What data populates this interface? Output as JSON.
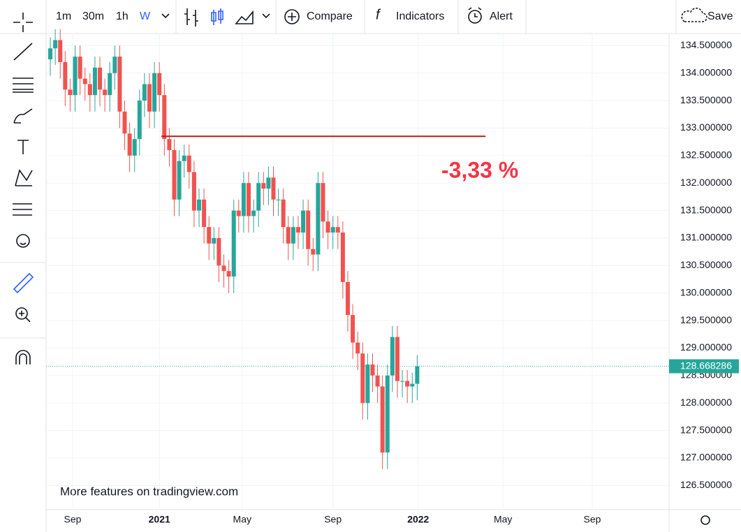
{
  "ui": {
    "intervals": [
      "1m",
      "30m",
      "1h",
      "W"
    ],
    "compare": "Compare",
    "indicators": "Indicators",
    "alert": "Alert",
    "save": "Save",
    "watermark": "More features on tradingview.com"
  },
  "chart_data": {
    "type": "candlestick",
    "up_color": "#26a69a",
    "down_color": "#ef5350",
    "grid": true,
    "open": [
      134.25,
      134.45,
      134.6,
      134.2,
      133.7,
      133.6,
      134.3,
      133.9,
      133.8,
      133.6,
      134.1,
      133.7,
      133.6,
      134.0,
      134.3,
      133.3,
      132.9,
      132.5,
      132.8,
      133.5,
      133.8,
      133.3,
      134.0,
      133.6,
      132.8,
      132.6,
      131.7,
      132.4,
      132.5,
      132.2,
      131.5,
      131.7,
      131.2,
      130.9,
      131.0,
      130.5,
      130.4,
      130.3,
      131.5,
      131.4,
      132.0,
      131.4,
      131.5,
      132.0,
      131.9,
      132.1,
      131.7,
      131.7,
      131.2,
      130.9,
      131.2,
      131.1,
      131.5,
      130.8,
      130.7,
      132.0,
      131.3,
      131.1,
      131.2,
      131.1,
      130.2,
      129.6,
      129.1,
      128.9,
      128.0,
      128.7,
      128.5,
      128.3,
      127.1,
      128.5,
      129.2,
      128.4,
      128.4,
      128.3,
      128.35
    ],
    "high": [
      134.65,
      134.8,
      134.8,
      134.4,
      133.9,
      134.5,
      134.5,
      134.1,
      134.0,
      134.3,
      134.3,
      133.9,
      134.2,
      134.5,
      134.5,
      133.5,
      133.1,
      133.0,
      133.7,
      134.0,
      134.0,
      134.2,
      134.2,
      133.8,
      133.0,
      132.8,
      132.6,
      132.7,
      132.7,
      132.4,
      131.9,
      131.9,
      131.4,
      131.2,
      131.2,
      130.7,
      130.6,
      131.7,
      131.7,
      132.2,
      132.2,
      131.7,
      132.2,
      132.2,
      132.3,
      132.3,
      131.9,
      131.9,
      131.4,
      131.4,
      131.4,
      131.7,
      131.7,
      131.0,
      132.2,
      132.2,
      131.5,
      131.4,
      131.4,
      131.3,
      130.4,
      129.8,
      129.3,
      129.1,
      128.9,
      128.9,
      128.7,
      128.5,
      128.7,
      129.4,
      129.4,
      128.6,
      128.6,
      128.55,
      128.87
    ],
    "low": [
      133.95,
      134.15,
      133.9,
      133.4,
      133.3,
      133.3,
      133.6,
      133.5,
      133.3,
      133.3,
      133.4,
      133.3,
      133.3,
      133.7,
      133.0,
      132.6,
      132.2,
      132.2,
      132.5,
      133.2,
      133.0,
      133.0,
      133.3,
      132.5,
      132.3,
      131.4,
      131.4,
      132.1,
      131.9,
      131.2,
      131.2,
      130.9,
      130.6,
      130.6,
      130.2,
      130.1,
      130.0,
      130.0,
      131.1,
      131.1,
      131.1,
      131.1,
      131.2,
      131.6,
      131.6,
      131.4,
      131.4,
      130.9,
      130.6,
      130.6,
      130.8,
      130.8,
      130.5,
      130.4,
      130.4,
      131.0,
      130.8,
      130.8,
      130.8,
      129.9,
      129.3,
      128.8,
      128.6,
      127.7,
      127.7,
      128.2,
      128.0,
      126.8,
      126.8,
      128.2,
      128.1,
      128.1,
      128.0,
      128.0,
      128.05
    ],
    "close": [
      134.45,
      134.6,
      134.2,
      133.7,
      133.6,
      134.3,
      133.9,
      133.8,
      133.6,
      134.1,
      133.7,
      133.6,
      134.0,
      134.3,
      133.3,
      132.9,
      132.5,
      132.8,
      133.5,
      133.8,
      133.3,
      134.0,
      133.6,
      132.8,
      132.6,
      131.7,
      132.4,
      132.5,
      132.2,
      131.5,
      131.7,
      131.2,
      130.9,
      131.0,
      130.5,
      130.4,
      130.3,
      131.5,
      131.4,
      132.0,
      131.4,
      131.5,
      132.0,
      131.9,
      132.1,
      131.7,
      131.7,
      131.2,
      130.9,
      131.2,
      131.1,
      131.5,
      130.8,
      130.7,
      132.0,
      131.3,
      131.1,
      131.2,
      131.1,
      130.2,
      129.6,
      129.1,
      128.9,
      128.0,
      128.7,
      128.5,
      128.3,
      127.1,
      128.5,
      129.2,
      128.4,
      128.4,
      128.3,
      128.35,
      128.668286
    ],
    "xlim": [
      -0.85,
      124.8
    ],
    "xticks": [
      {
        "value": 4.5,
        "label": "Sep"
      },
      {
        "value": 22.0,
        "label": "2021"
      },
      {
        "value": 38.7,
        "label": "May"
      },
      {
        "value": 57.0,
        "label": "Sep"
      },
      {
        "value": 74.2,
        "label": "2022"
      },
      {
        "value": 91.3,
        "label": "May"
      },
      {
        "value": 109.3,
        "label": "Sep"
      }
    ],
    "ylim": [
      126.06,
      134.72
    ],
    "yticks": [
      {
        "value": 126.5,
        "label": "126.500000"
      },
      {
        "value": 127,
        "label": "127.000000"
      },
      {
        "value": 127.5,
        "label": "127.500000"
      },
      {
        "value": 128,
        "label": "128.000000"
      },
      {
        "value": 128.5,
        "label": "128.500000"
      },
      {
        "value": 129,
        "label": "129.000000"
      },
      {
        "value": 129.5,
        "label": "129.500000"
      },
      {
        "value": 130,
        "label": "130.000000"
      },
      {
        "value": 130.5,
        "label": "130.500000"
      },
      {
        "value": 131,
        "label": "131.000000"
      },
      {
        "value": 131.5,
        "label": "131.500000"
      },
      {
        "value": 132,
        "label": "132.000000"
      },
      {
        "value": 132.5,
        "label": "132.500000"
      },
      {
        "value": 133,
        "label": "133.000000"
      },
      {
        "value": 133.5,
        "label": "133.500000"
      },
      {
        "value": 134,
        "label": "134.000000"
      },
      {
        "value": 134.5,
        "label": "134.500000"
      }
    ],
    "trend_line": {
      "value": 132.85,
      "x": [
        22.4,
        87.8
      ],
      "color": "#b71c1c"
    },
    "annotation": {
      "text": "-3,33 %",
      "color": "#f23645"
    }
  }
}
